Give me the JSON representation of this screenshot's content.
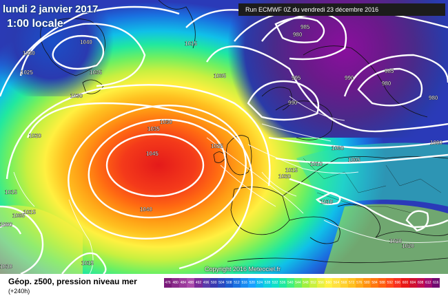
{
  "header": {
    "date_line": "lundi 2 janvier 2017",
    "local_time": "1:00 locale",
    "run_info": "Run ECMWF 0Z du vendredi 23 décembre 2016"
  },
  "copyright": "Copyright 2016 Meteociel.fr",
  "footer": {
    "parameter": "Géop. z500, pression niveau mer",
    "lead_time": "(+240h)"
  },
  "isobar_labels": {
    "l1040a": "1040",
    "l1030a": "1030",
    "l1025a": "1025",
    "l1035a": "1035",
    "l1030b": "1030",
    "l1015a": "1015",
    "l1005a": "1005",
    "l985a": "985",
    "l980a": "980",
    "l995a": "995",
    "l990a": "990",
    "l985b": "985",
    "l980b": "980",
    "l980c": "980",
    "l990b": "990",
    "l1030c": "1030",
    "l1035b": "1035",
    "l1020a": "1020",
    "l1045": "1045",
    "l1025b": "1025",
    "l1000a": "1000",
    "l1000b": "1000",
    "l1005b": "1005",
    "l1010a": "1010",
    "l1015b": "1015",
    "l1020b": "1020",
    "l1040b": "1040",
    "l1015c": "1015",
    "l1015d": "1015",
    "l1005c": "1005",
    "l1000c": "1000",
    "l1010b": "1010",
    "l1020c": "1020",
    "l1020d": "1020",
    "l1015e": "1015",
    "l1010c": "1010"
  },
  "colors": {
    "high_center": "#e8201c",
    "low_center": "#8a0f9e",
    "contour": "#ffffff"
  },
  "scale": {
    "labels": [
      "476",
      "480",
      "484",
      "488",
      "492",
      "496",
      "500",
      "504",
      "508",
      "512",
      "516",
      "520",
      "524",
      "528",
      "532",
      "536",
      "540",
      "544",
      "548",
      "552",
      "556",
      "560",
      "564",
      "568",
      "572",
      "576",
      "580",
      "584",
      "588",
      "592",
      "596",
      "600",
      "604",
      "608",
      "612",
      "616"
    ],
    "colors": [
      "#7a1a7a",
      "#8a2a8a",
      "#9a3a9a",
      "#aa4aaa",
      "#7a2a99",
      "#5a3aaa",
      "#3a3ab0",
      "#2a4ac0",
      "#1a5ad0",
      "#1a70e0",
      "#1a8af0",
      "#1aa0ff",
      "#10b8f0",
      "#10d0e0",
      "#10e0c8",
      "#20e8a0",
      "#40f080",
      "#70f060",
      "#a0f040",
      "#c8f040",
      "#e8f040",
      "#fff040",
      "#ffe040",
      "#ffd030",
      "#ffc020",
      "#ffa818",
      "#ff9010",
      "#ff7810",
      "#ff6010",
      "#ff4818",
      "#f83020",
      "#e81818",
      "#d01030",
      "#c00c50",
      "#a00a70",
      "#700a70"
    ]
  }
}
